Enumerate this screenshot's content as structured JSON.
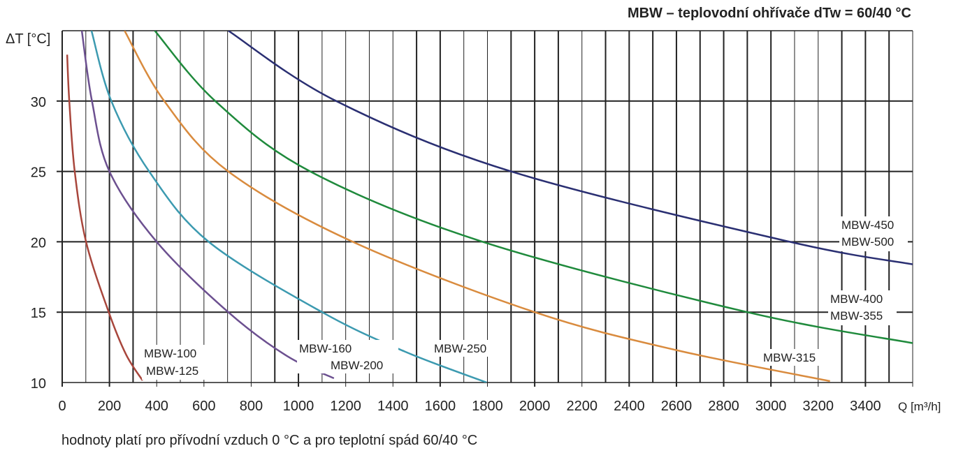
{
  "chart_data": {
    "type": "line",
    "title": "MBW – teplovodní ohřívače dTw = 60/40 °C",
    "xlabel": "Q [m³/h]",
    "ylabel": "ΔT [°C]",
    "footnote": "hodnoty platí pro přívodní vzduch 0 °C a pro teplotní spád 60/40 °C",
    "xlim": [
      0,
      3600
    ],
    "ylim": [
      10,
      35
    ],
    "x_ticks": [
      0,
      200,
      400,
      600,
      800,
      1000,
      1200,
      1400,
      1600,
      1800,
      2000,
      2200,
      2400,
      2600,
      2800,
      3000,
      3200,
      3400
    ],
    "y_ticks": [
      10,
      15,
      20,
      25,
      30
    ],
    "grid": true,
    "series": [
      {
        "name": "MBW-100 / MBW-125",
        "labels": [
          "MBW-100",
          "MBW-125"
        ],
        "color": "#a8463c",
        "points": [
          [
            21,
            33.3
          ],
          [
            30,
            30
          ],
          [
            53,
            25
          ],
          [
            101,
            20
          ],
          [
            197,
            15
          ],
          [
            270,
            12
          ],
          [
            340,
            10.15
          ]
        ]
      },
      {
        "name": "MBW-160 / MBW-200",
        "labels": [
          "MBW-160",
          "MBW-200"
        ],
        "color": "#6c5090",
        "points": [
          [
            83,
            35
          ],
          [
            126,
            30
          ],
          [
            200,
            25
          ],
          [
            400,
            20
          ],
          [
            703,
            15
          ],
          [
            950,
            11.9
          ],
          [
            1150,
            10.3
          ]
        ]
      },
      {
        "name": "MBW-250",
        "labels": [
          "MBW-250"
        ],
        "color": "#3c9ab0",
        "points": [
          [
            124,
            35
          ],
          [
            208,
            30
          ],
          [
            368,
            25
          ],
          [
            620,
            20
          ],
          [
            1100,
            15
          ],
          [
            1450,
            12.2
          ],
          [
            1797,
            10
          ]
        ]
      },
      {
        "name": "MBW-315",
        "labels": [
          "MBW-315"
        ],
        "color": "#d98b3e",
        "points": [
          [
            264,
            35
          ],
          [
            432,
            30
          ],
          [
            703,
            25
          ],
          [
            1230,
            20
          ],
          [
            2000,
            15
          ],
          [
            2600,
            12.3
          ],
          [
            3250,
            10.1
          ]
        ]
      },
      {
        "name": "MBW-400 / MBW-355",
        "labels": [
          "MBW-400",
          "MBW-355"
        ],
        "color": "#1f8a3c",
        "points": [
          [
            392,
            35
          ],
          [
            648,
            30
          ],
          [
            1050,
            25
          ],
          [
            1780,
            20
          ],
          [
            2900,
            15
          ],
          [
            3600,
            12.8
          ]
        ]
      },
      {
        "name": "MBW-450 / MBW-500",
        "labels": [
          "MBW-450",
          "MBW-500"
        ],
        "color": "#2a2f72",
        "points": [
          [
            703,
            35
          ],
          [
            1160,
            30
          ],
          [
            1900,
            25
          ],
          [
            3080,
            20
          ],
          [
            3600,
            18.4
          ]
        ]
      }
    ]
  }
}
